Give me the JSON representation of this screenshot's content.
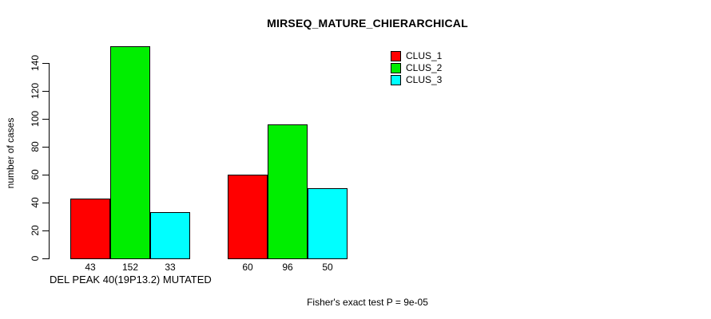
{
  "chart_data": {
    "type": "bar",
    "title": "MIRSEQ_MATURE_CHIERARCHICAL",
    "ylabel": "number of cases",
    "xlabel": "DEL PEAK 40(19P13.2) MUTATED",
    "footnote": "Fisher's exact test P = 9e-05",
    "yticks": [
      0,
      20,
      40,
      60,
      80,
      100,
      120,
      140
    ],
    "ylim": [
      0,
      152
    ],
    "grid": false,
    "legend_position": "top-right",
    "bar_value_labels": true,
    "group_count": 2,
    "series": [
      {
        "name": "CLUS_1",
        "color": "#FF0000",
        "values": [
          43,
          60
        ]
      },
      {
        "name": "CLUS_2",
        "color": "#00EE00",
        "values": [
          152,
          96
        ]
      },
      {
        "name": "CLUS_3",
        "color": "#00FFFF",
        "values": [
          33,
          50
        ]
      }
    ],
    "background_color": "#FFFFFF",
    "axis_color": "#000000"
  }
}
